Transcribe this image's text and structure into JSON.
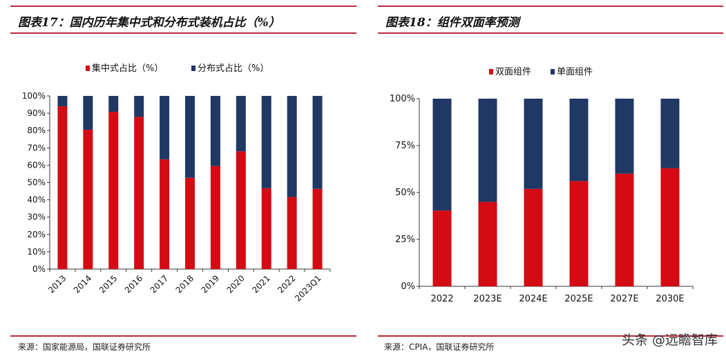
{
  "left": {
    "title": "图表17：国内历年集中式和分布式装机占比（%）",
    "source": "来源：国家能源局，国联证券研究所"
  },
  "right": {
    "title": "图表18：组件双面率预测",
    "source": "来源：CPIA，国联证券研究所"
  },
  "watermark": "头条 @远瞻智库",
  "colors": {
    "red": "#d40b14",
    "navy": "#1f3864",
    "rule": "#b8283c"
  },
  "chart_data": [
    {
      "type": "bar",
      "stacked": true,
      "categories": [
        "2013",
        "2014",
        "2015",
        "2016",
        "2017",
        "2018",
        "2019",
        "2020",
        "2021",
        "2022",
        "2023Q1"
      ],
      "series": [
        {
          "name": "集中式占比（%）",
          "color": "#d40b14",
          "values": [
            94.0,
            80.5,
            90.8,
            87.9,
            63.4,
            52.7,
            59.5,
            68.0,
            46.7,
            41.6,
            46.3
          ]
        },
        {
          "name": "分布式占比（%）",
          "color": "#1f3864",
          "values": [
            6.0,
            19.5,
            9.2,
            12.1,
            36.6,
            47.3,
            40.5,
            32.0,
            53.3,
            58.4,
            53.7
          ]
        }
      ],
      "yticks": [
        "0%",
        "10%",
        "20%",
        "30%",
        "40%",
        "50%",
        "60%",
        "70%",
        "80%",
        "90%",
        "100%"
      ],
      "ylim": [
        0,
        100
      ],
      "legend": "top",
      "grid": false
    },
    {
      "type": "bar",
      "stacked": true,
      "categories": [
        "2022",
        "2023E",
        "2024E",
        "2025E",
        "2027E",
        "2030E"
      ],
      "series": [
        {
          "name": "双面组件",
          "color": "#d40b14",
          "values": [
            40.4,
            45.0,
            51.9,
            56.1,
            60.0,
            62.9
          ]
        },
        {
          "name": "单面组件",
          "color": "#1f3864",
          "values": [
            59.6,
            55.0,
            48.1,
            43.9,
            40.0,
            37.1
          ]
        }
      ],
      "yticks": [
        "0%",
        "25%",
        "50%",
        "75%",
        "100%"
      ],
      "ylim": [
        0,
        100
      ],
      "legend": "top",
      "grid": false
    }
  ]
}
